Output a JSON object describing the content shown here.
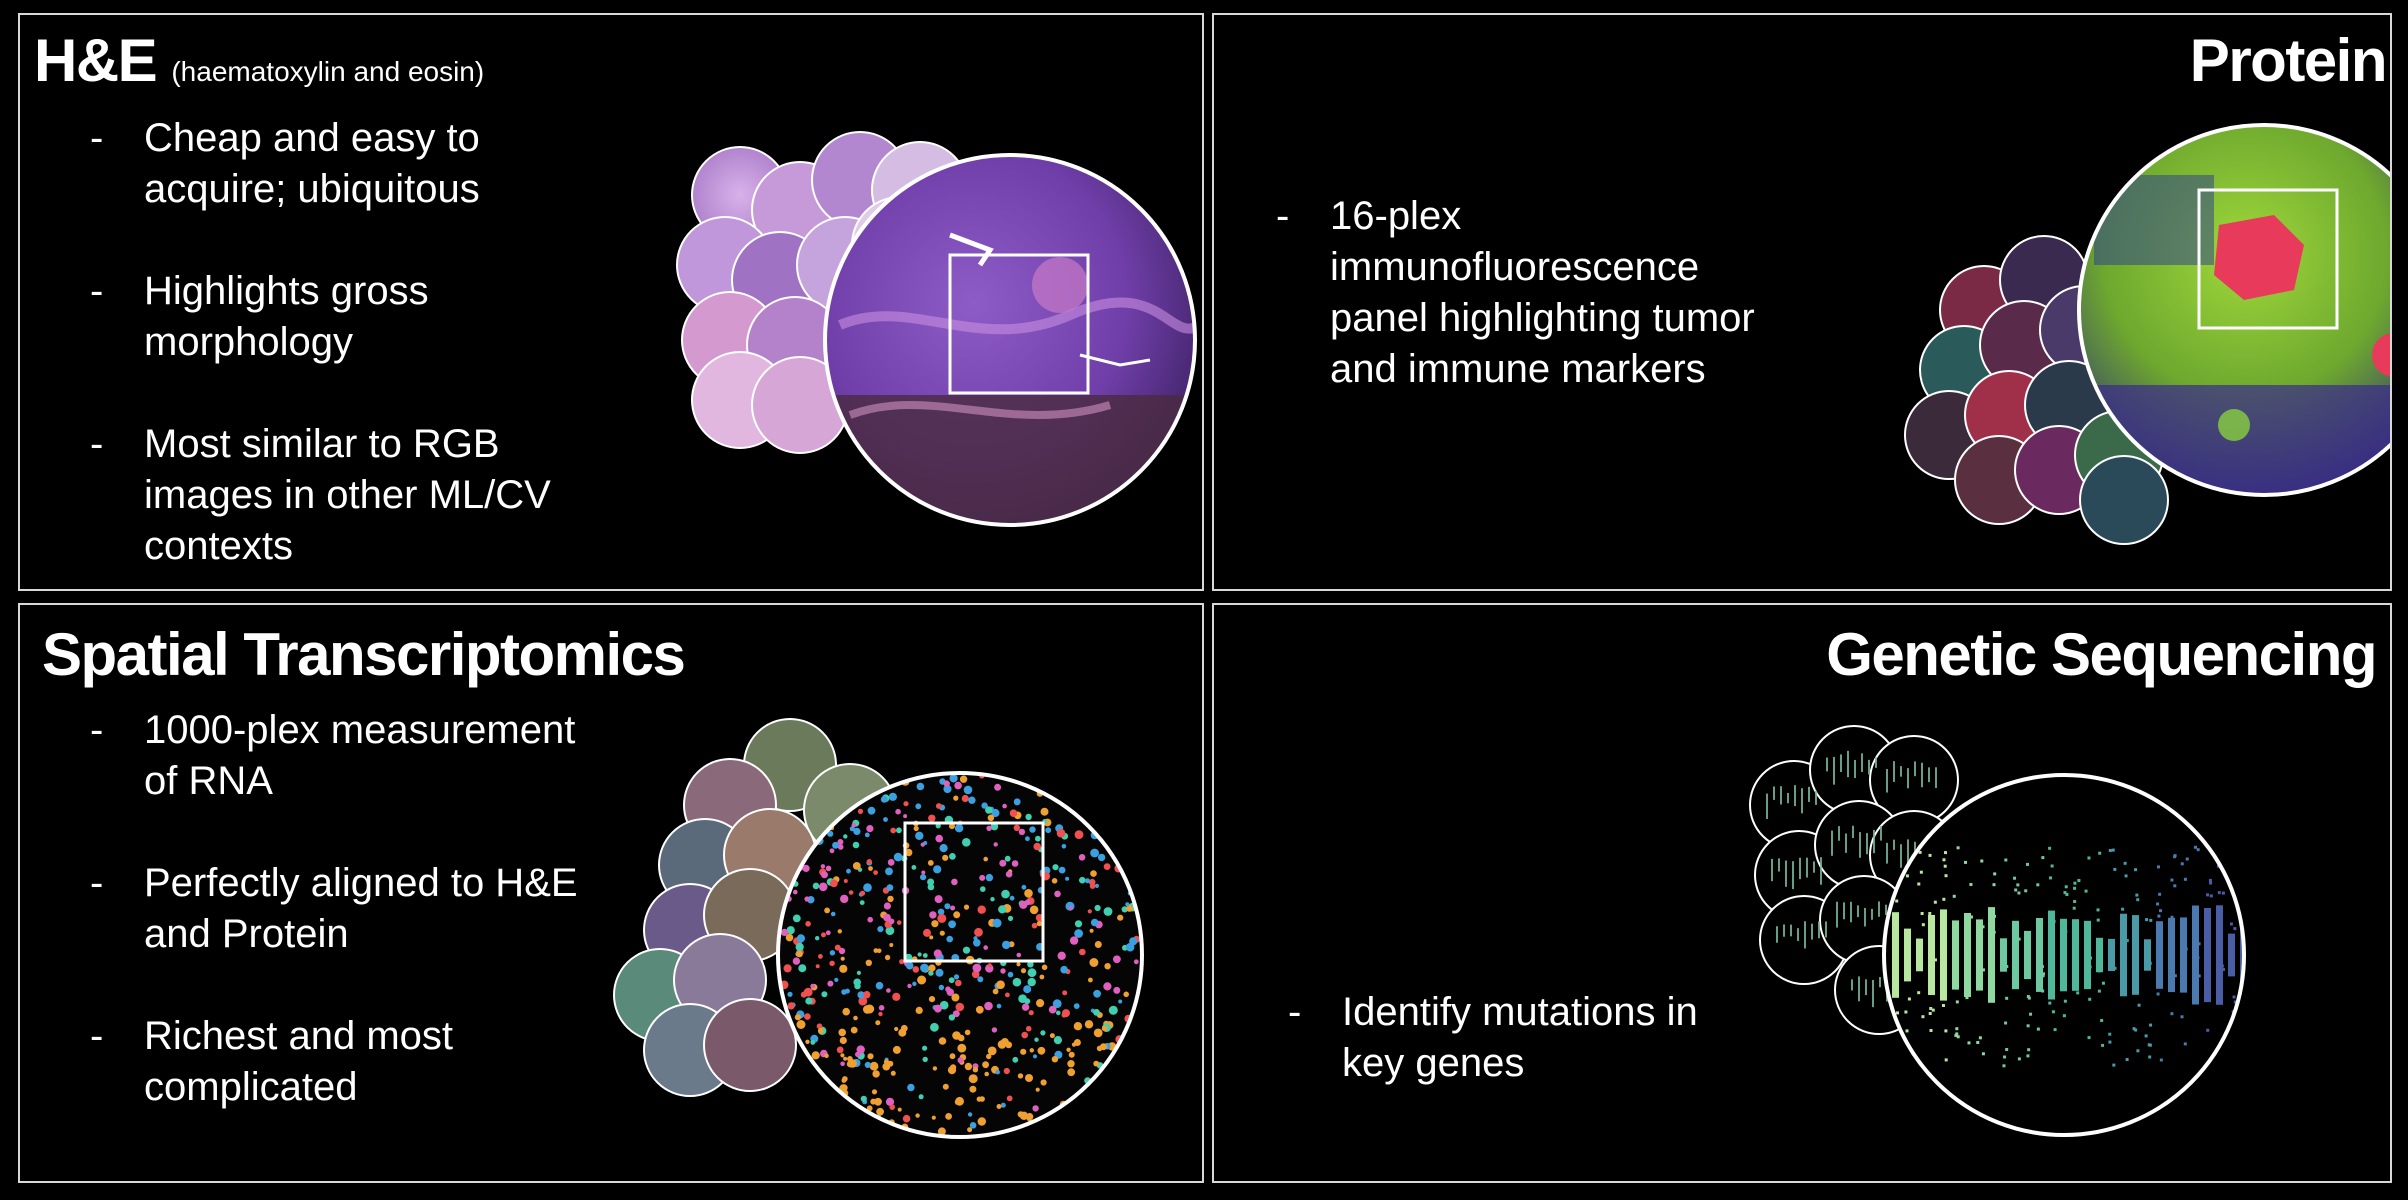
{
  "panels": {
    "he": {
      "title": "H&E",
      "subtitle": "(haematoxylin and eosin)",
      "bullets": [
        "Cheap and easy to acquire; ubiquitous",
        "Highlights gross morphology",
        "Most similar to RGB images in other ML/CV contexts"
      ]
    },
    "protein": {
      "title": "Protein",
      "bullets": [
        "16-plex immunofluorescence panel highlighting tumor and immune markers"
      ]
    },
    "spatial": {
      "title": "Spatial Transcriptomics",
      "bullets": [
        "1000-plex measurement of RNA",
        "Perfectly aligned to H&E and Protein",
        "Richest and most complicated"
      ]
    },
    "genetic": {
      "title": "Genetic Sequencing",
      "bullets": [
        "Identify mutations in key genes"
      ]
    }
  },
  "bullet_marker": "-",
  "colors": {
    "background": "#000000",
    "text": "#ffffff",
    "border": "#d8d8d8",
    "he_purple": "#9b5fc0",
    "protein_green": "#a8e03a",
    "protein_red": "#e8405a",
    "spatial_dots": [
      "#3aa0e0",
      "#f0a030",
      "#e060c0",
      "#40d0b0",
      "#f05050"
    ],
    "genetic_teal": "#4fb89a"
  },
  "icons": [
    "he-tissue-image",
    "protein-tissue-image",
    "spatial-transcriptomics-image",
    "genetic-sequencing-image"
  ]
}
